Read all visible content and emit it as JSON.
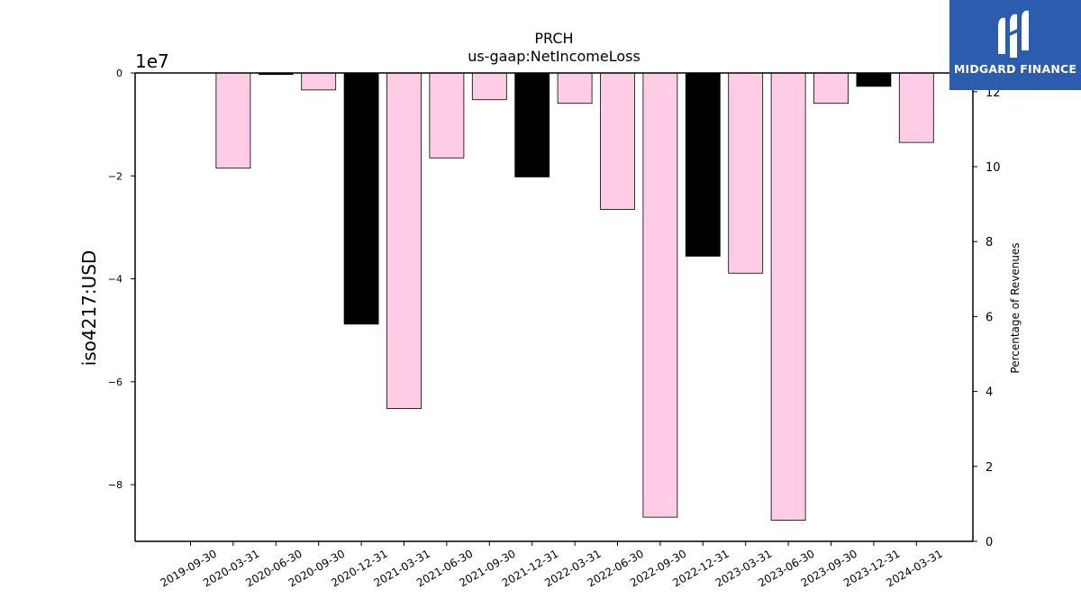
{
  "chart_data": {
    "type": "bar",
    "title": "PRCH",
    "subtitle": "us-gaap:NetIncomeLoss",
    "ylabel": "iso4217:USD",
    "y_scale_label": "1e7",
    "y2label": "Percentage of Revenues",
    "ylim": [
      -9.1,
      0
    ],
    "y2lim": [
      0,
      12.5
    ],
    "yticks": [
      0,
      -2,
      -4,
      -6,
      -8
    ],
    "yticklabels": [
      "0",
      "−2",
      "−4",
      "−6",
      "−8"
    ],
    "y2ticks": [
      0,
      2,
      4,
      6,
      8,
      10,
      12
    ],
    "categories": [
      "2019-09-30",
      "2020-03-31",
      "2020-06-30",
      "2020-09-30",
      "2020-12-31",
      "2021-03-31",
      "2021-06-30",
      "2021-09-30",
      "2021-12-31",
      "2022-03-31",
      "2022-06-30",
      "2022-09-30",
      "2022-12-31",
      "2023-03-31",
      "2023-06-30",
      "2023-09-30",
      "2023-12-31",
      "2024-03-31"
    ],
    "values": [
      0,
      -1.85,
      -0.03,
      -0.33,
      -4.88,
      -6.52,
      -1.65,
      -0.52,
      -2.02,
      -0.59,
      -2.65,
      -8.63,
      -3.56,
      -3.89,
      -8.69,
      -0.59,
      -0.26,
      -1.35
    ],
    "bar_colors": [
      "#ffcce6",
      "#ffcce6",
      "#000000",
      "#ffcce6",
      "#000000",
      "#ffcce6",
      "#ffcce6",
      "#ffcce6",
      "#000000",
      "#ffcce6",
      "#ffcce6",
      "#ffcce6",
      "#000000",
      "#ffcce6",
      "#ffcce6",
      "#ffcce6",
      "#000000",
      "#ffcce6"
    ],
    "grid": false,
    "legend": "none"
  },
  "logo": {
    "text": "MIDGARD FINANCE",
    "bg_color": "#2b5cad"
  }
}
